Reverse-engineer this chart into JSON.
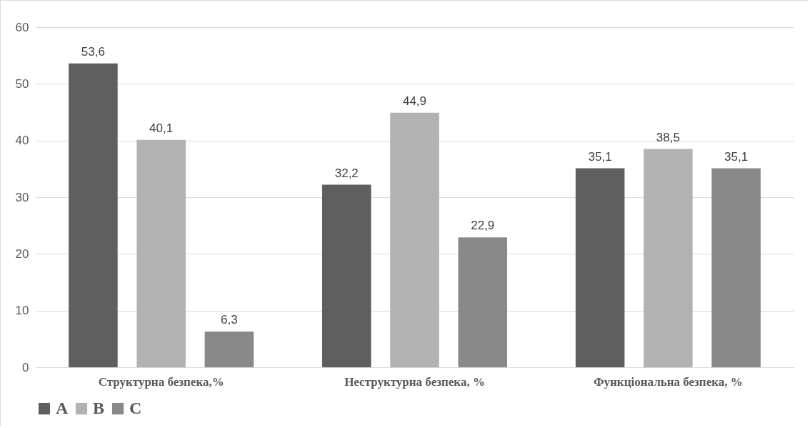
{
  "chart_data": {
    "type": "bar",
    "categories": [
      "Структурна безпека,%",
      "Неструктурна безпека, %",
      "Функціональна безпека, %"
    ],
    "series": [
      {
        "name": "A",
        "color": "#5f5f5f",
        "values": [
          53.6,
          32.2,
          35.1
        ],
        "value_labels": [
          "53,6",
          "32,2",
          "35,1"
        ]
      },
      {
        "name": "B",
        "color": "#b2b2b2",
        "values": [
          40.1,
          44.9,
          38.5
        ],
        "value_labels": [
          "40,1",
          "44,9",
          "38,5"
        ]
      },
      {
        "name": "C",
        "color": "#898989",
        "values": [
          6.3,
          22.9,
          35.1
        ],
        "value_labels": [
          "6,3",
          "22,9",
          "35,1"
        ]
      }
    ],
    "ylim": [
      0,
      60
    ],
    "yticks": [
      0,
      10,
      20,
      30,
      40,
      50,
      60
    ],
    "grid": "y",
    "legend": "bottom"
  }
}
